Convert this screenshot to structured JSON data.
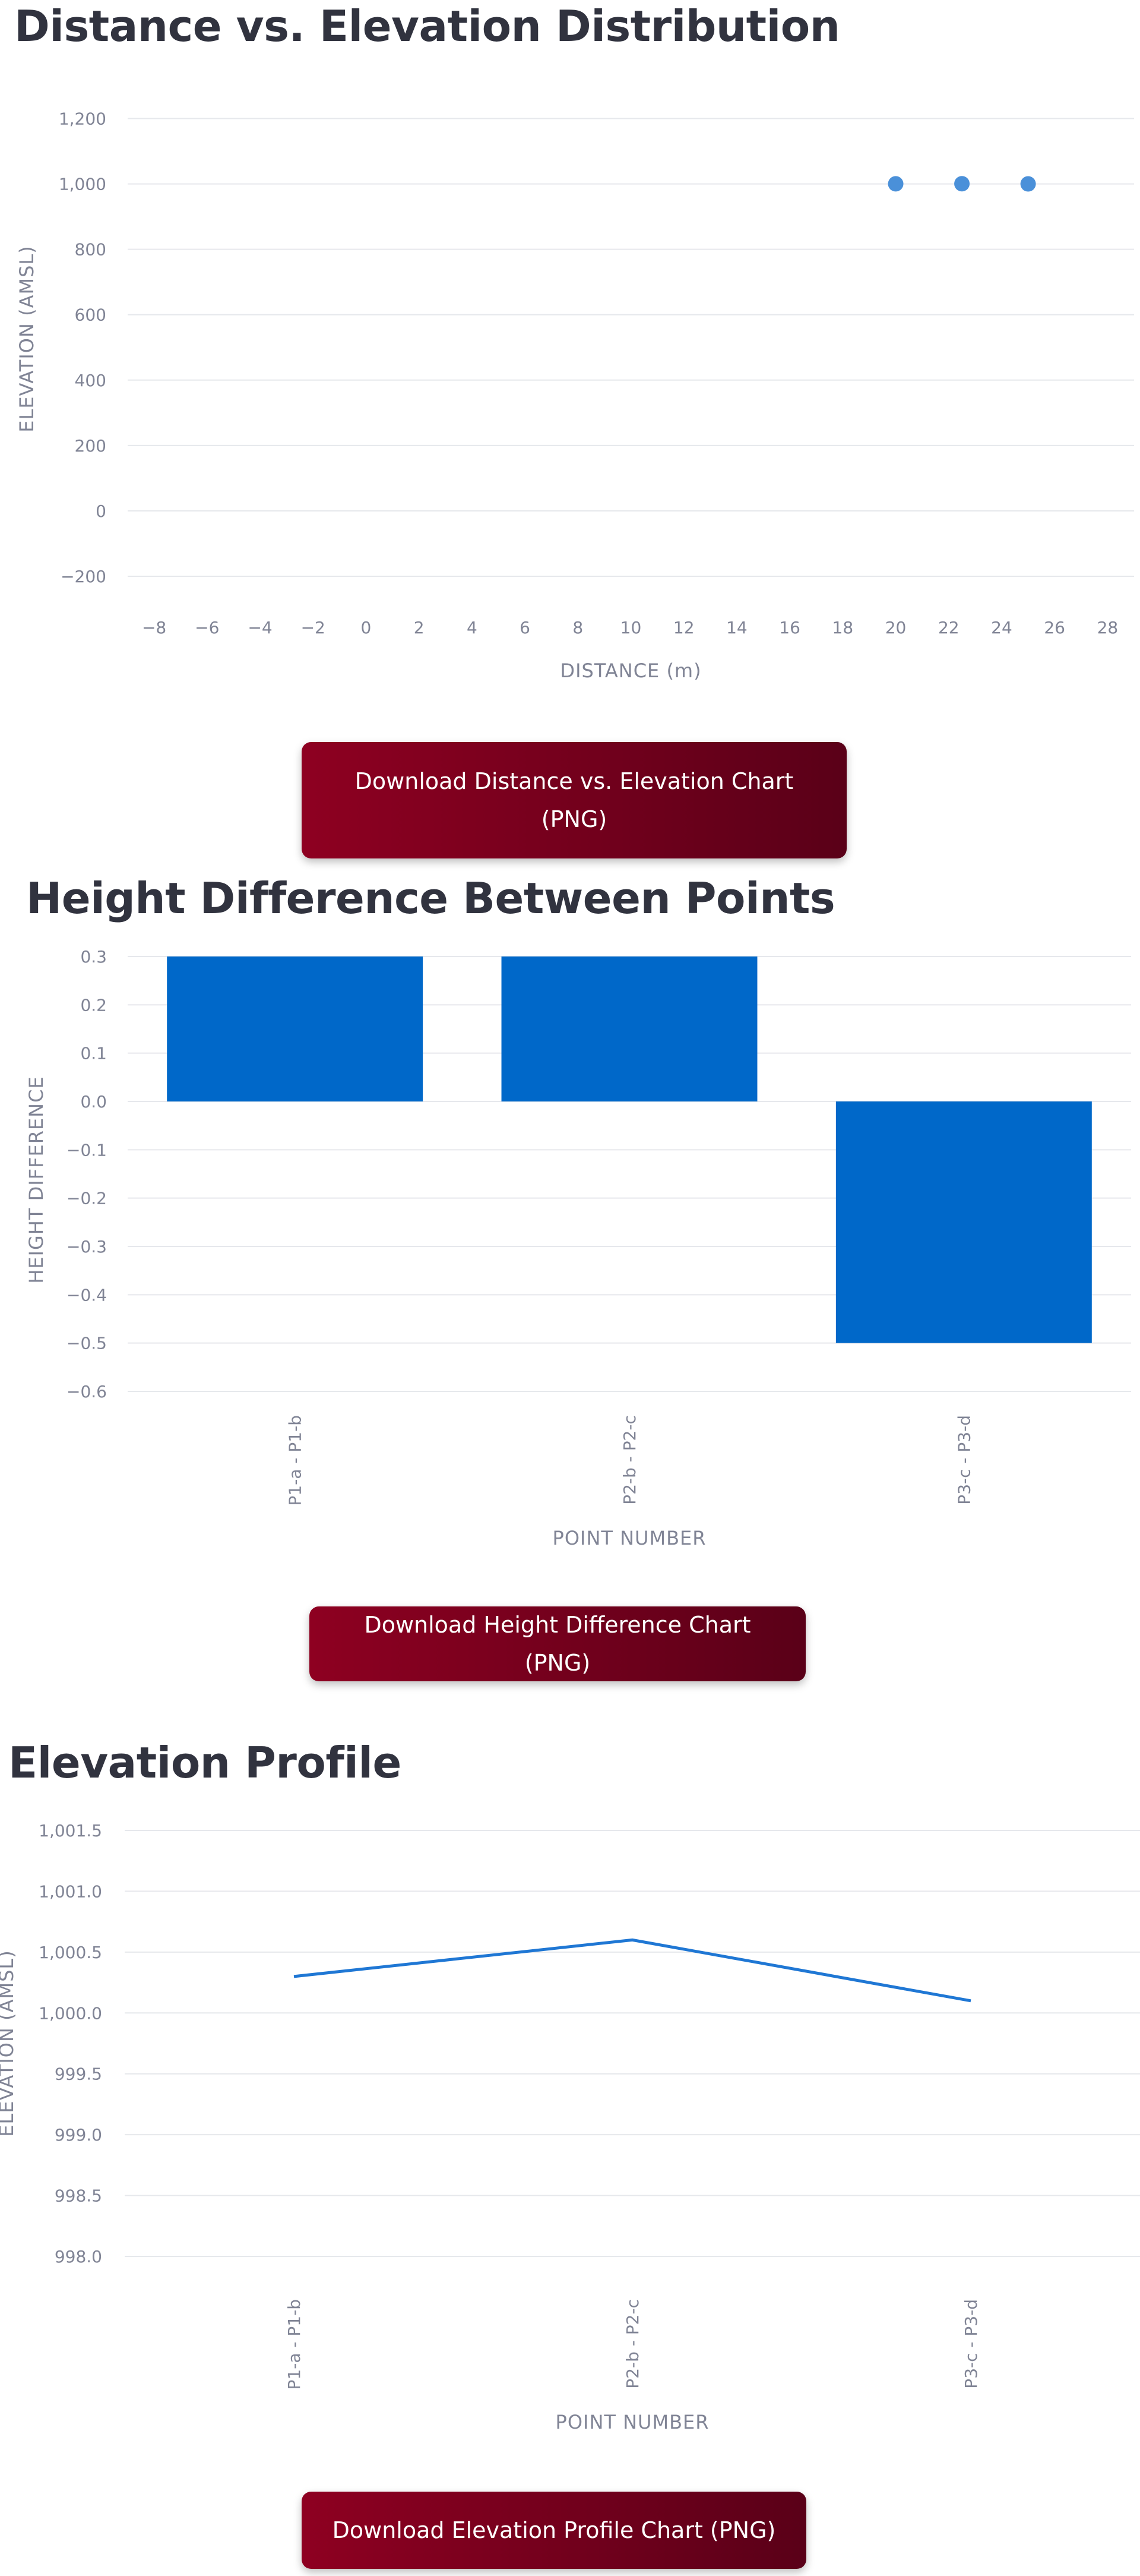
{
  "chart_data": [
    {
      "type": "scatter",
      "title": "Distance vs. Elevation Distribution",
      "xlabel": "DISTANCE (m)",
      "ylabel": "ELEVATION (AMSL)",
      "xlim": [
        -9,
        29
      ],
      "ylim": [
        -300,
        1250
      ],
      "x_ticks": [
        -8,
        -6,
        -4,
        -2,
        0,
        2,
        4,
        6,
        8,
        10,
        12,
        14,
        16,
        18,
        20,
        22,
        24,
        26,
        28
      ],
      "x_tick_labels": [
        "−8",
        "−6",
        "−4",
        "−2",
        "0",
        "2",
        "4",
        "6",
        "8",
        "10",
        "12",
        "14",
        "16",
        "18",
        "20",
        "22",
        "24",
        "26",
        "28"
      ],
      "y_ticks": [
        -200,
        0,
        200,
        400,
        600,
        800,
        1000,
        1200
      ],
      "y_tick_labels": [
        "−200",
        "0",
        "200",
        "400",
        "600",
        "800",
        "1,000",
        "1,200"
      ],
      "grid": true,
      "points": [
        {
          "x": 20,
          "y": 1000.3
        },
        {
          "x": 22.5,
          "y": 1000.6
        },
        {
          "x": 25,
          "y": 1000.1
        }
      ],
      "color": "#4a90d9"
    },
    {
      "type": "bar",
      "title": "Height Difference Between Points",
      "xlabel": "POINT NUMBER",
      "ylabel": "HEIGHT DIFFERENCE",
      "categories": [
        "P1-a - P1-b",
        "P2-b - P2-c",
        "P3-c - P3-d"
      ],
      "values": [
        0.3,
        0.3,
        -0.5
      ],
      "ylim": [
        -0.6,
        0.3
      ],
      "y_ticks": [
        -0.6,
        -0.5,
        -0.4,
        -0.3,
        -0.2,
        -0.1,
        0.0,
        0.1,
        0.2,
        0.3
      ],
      "y_tick_labels": [
        "−0.6",
        "−0.5",
        "−0.4",
        "−0.3",
        "−0.2",
        "−0.1",
        "0.0",
        "0.1",
        "0.2",
        "0.3"
      ],
      "grid": true,
      "color": "#0068c9"
    },
    {
      "type": "line",
      "title": "Elevation Profile",
      "xlabel": "POINT NUMBER",
      "ylabel": "ELEVATION (AMSL)",
      "categories": [
        "P1-a - P1-b",
        "P2-b - P2-c",
        "P3-c - P3-d"
      ],
      "values": [
        1000.3,
        1000.6,
        1000.1
      ],
      "ylim": [
        998.0,
        1001.5
      ],
      "y_ticks": [
        998.0,
        998.5,
        999.0,
        999.5,
        1000.0,
        1000.5,
        1001.0,
        1001.5
      ],
      "y_tick_labels": [
        "998.0",
        "998.5",
        "999.0",
        "999.5",
        "1,000.0",
        "1,000.5",
        "1,001.0",
        "1,001.5"
      ],
      "grid": true,
      "color": "#1f77d4"
    }
  ],
  "buttons": {
    "download_distance": "Download Distance vs. Elevation Chart (PNG)",
    "download_height": "Download Height Difference Chart (PNG)",
    "download_profile": "Download Elevation Profile Chart (PNG)"
  }
}
